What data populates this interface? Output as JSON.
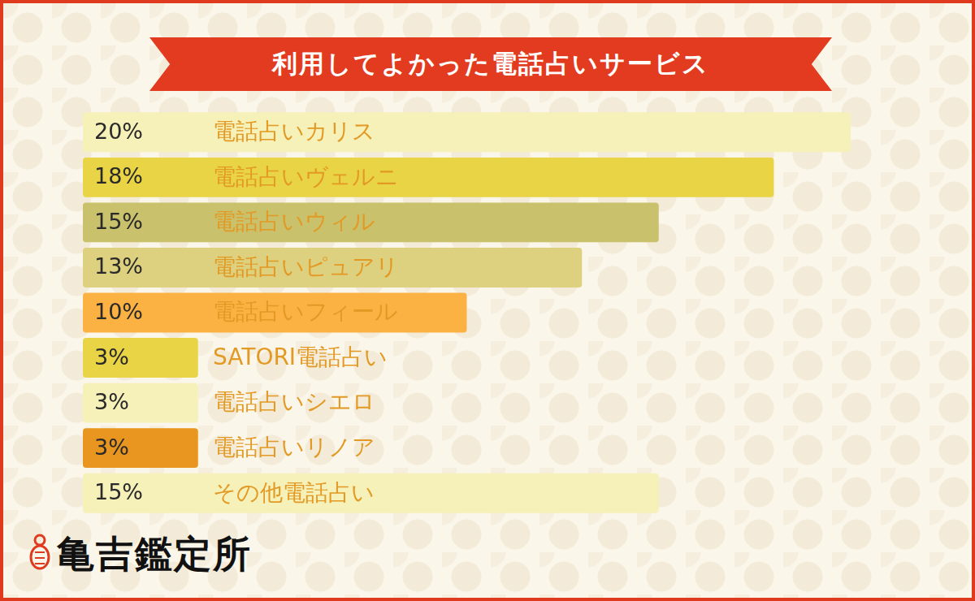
{
  "chart_data": {
    "type": "bar",
    "orientation": "horizontal",
    "title": "利用してよかった電話占いサービス",
    "categories": [
      "電話占いカリス",
      "電話占いヴェルニ",
      "電話占いウィル",
      "電話占いピュアリ",
      "電話占いフィール",
      "SATORI電話占い",
      "電話占いシエロ",
      "電話占いリノア",
      "その他電話占い"
    ],
    "values": [
      20,
      18,
      15,
      13,
      10,
      3,
      3,
      3,
      15
    ],
    "value_labels": [
      "20%",
      "18%",
      "15%",
      "13%",
      "10%",
      "3%",
      "3%",
      "3%",
      "15%"
    ],
    "colors": [
      "#f6f0b9",
      "#e9d446",
      "#c9c16c",
      "#ddd07e",
      "#fbb243",
      "#e9d446",
      "#f6f0b9",
      "#e8961f",
      "#f6f0b9"
    ],
    "xlim": [
      0,
      20
    ],
    "grid": false,
    "tick_labels": false,
    "data_labels": true
  },
  "logo_text": "亀吉鑑定所"
}
